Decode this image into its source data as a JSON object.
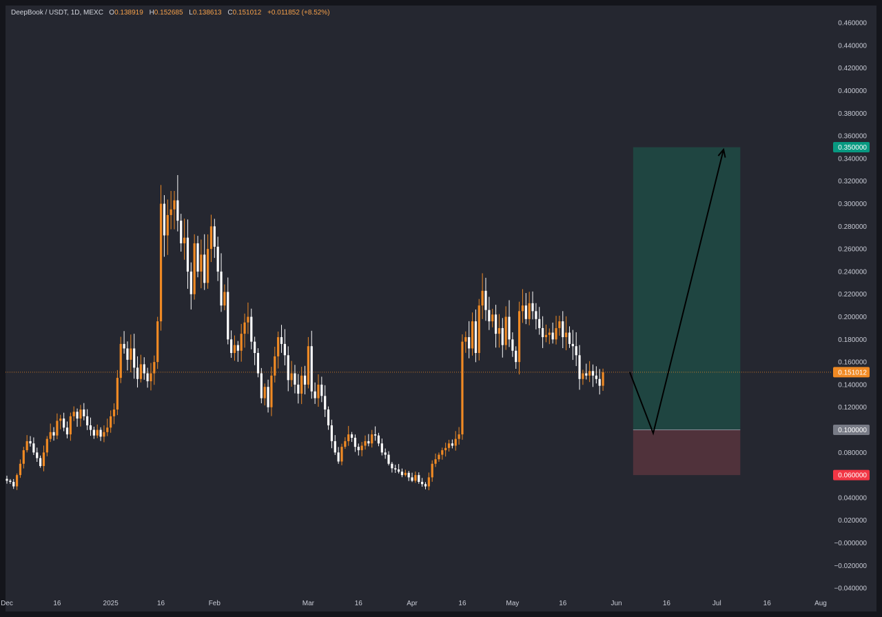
{
  "legend": {
    "symbol": "DeepBook / USDT, 1D, MEXC",
    "open_label": "O",
    "open": "0.138919",
    "high_label": "H",
    "high": "0.152685",
    "low_label": "L",
    "low": "0.138613",
    "close_label": "C",
    "close": "0.151012",
    "change": "+0.011852 (+8.52%)"
  },
  "colors": {
    "background": "#252730",
    "up_candle": "#f08a24",
    "down_candle": "#ffffff",
    "price_line": "#f08a24",
    "profit_zone": "#1f4541",
    "loss_zone": "#50323b",
    "target_badge": "#089981",
    "entry_badge": "#787b86",
    "stop_badge": "#f23645",
    "current_badge": "#f08a24",
    "arrow": "#000000"
  },
  "chart_data": {
    "type": "candlestick",
    "title": "DeepBook / USDT, 1D, MEXC",
    "ylim": [
      -0.045,
      0.47
    ],
    "y_ticks": [
      "0.460000",
      "0.440000",
      "0.420000",
      "0.400000",
      "0.380000",
      "0.360000",
      "0.340000",
      "0.320000",
      "0.300000",
      "0.280000",
      "0.260000",
      "0.240000",
      "0.220000",
      "0.200000",
      "0.180000",
      "0.160000",
      "0.140000",
      "0.120000",
      "0.100000",
      "0.080000",
      "0.060000",
      "0.040000",
      "0.020000",
      "−0.000000",
      "−0.020000",
      "−0.040000"
    ],
    "y_tick_values": [
      0.46,
      0.44,
      0.42,
      0.4,
      0.38,
      0.36,
      0.34,
      0.32,
      0.3,
      0.28,
      0.26,
      0.24,
      0.22,
      0.2,
      0.18,
      0.16,
      0.14,
      0.12,
      0.1,
      0.08,
      0.06,
      0.04,
      0.02,
      0,
      -0.02,
      -0.04
    ],
    "x_ticks": [
      {
        "label": "Dec",
        "day": 0
      },
      {
        "label": "16",
        "day": 15
      },
      {
        "label": "2025",
        "day": 31
      },
      {
        "label": "16",
        "day": 46
      },
      {
        "label": "Feb",
        "day": 62
      },
      {
        "label": "Mar",
        "day": 90
      },
      {
        "label": "16",
        "day": 105
      },
      {
        "label": "Apr",
        "day": 121
      },
      {
        "label": "16",
        "day": 136
      },
      {
        "label": "May",
        "day": 151
      },
      {
        "label": "16",
        "day": 166
      },
      {
        "label": "Jun",
        "day": 182
      },
      {
        "label": "16",
        "day": 197
      },
      {
        "label": "Jul",
        "day": 212
      },
      {
        "label": "16",
        "day": 227
      },
      {
        "label": "Aug",
        "day": 243
      }
    ],
    "current_price": 0.151012,
    "current_price_label": "0.151012",
    "position": {
      "start_day": 187,
      "end_day": 219,
      "target": 0.35,
      "target_label": "0.350000",
      "entry": 0.1,
      "entry_label": "0.100000",
      "stop": 0.06,
      "stop_label": "0.060000"
    },
    "projection": [
      {
        "day": 186,
        "price": 0.151
      },
      {
        "day": 193,
        "price": 0.097
      },
      {
        "day": 214,
        "price": 0.348
      }
    ],
    "closes": [
      0.055,
      0.054,
      0.05,
      0.06,
      0.07,
      0.082,
      0.09,
      0.088,
      0.08,
      0.075,
      0.068,
      0.08,
      0.092,
      0.098,
      0.095,
      0.108,
      0.11,
      0.102,
      0.096,
      0.112,
      0.116,
      0.11,
      0.118,
      0.112,
      0.104,
      0.1,
      0.095,
      0.1,
      0.094,
      0.098,
      0.102,
      0.112,
      0.118,
      0.146,
      0.176,
      0.172,
      0.162,
      0.172,
      0.155,
      0.145,
      0.158,
      0.15,
      0.143,
      0.15,
      0.16,
      0.196,
      0.3,
      0.272,
      0.29,
      0.295,
      0.303,
      0.285,
      0.265,
      0.27,
      0.24,
      0.22,
      0.265,
      0.24,
      0.255,
      0.23,
      0.26,
      0.28,
      0.262,
      0.24,
      0.21,
      0.222,
      0.18,
      0.168,
      0.175,
      0.17,
      0.185,
      0.195,
      0.2,
      0.178,
      0.168,
      0.15,
      0.128,
      0.138,
      0.12,
      0.148,
      0.165,
      0.182,
      0.176,
      0.166,
      0.144,
      0.15,
      0.14,
      0.132,
      0.148,
      0.14,
      0.174,
      0.134,
      0.128,
      0.14,
      0.13,
      0.118,
      0.104,
      0.09,
      0.08,
      0.072,
      0.085,
      0.09,
      0.096,
      0.093,
      0.085,
      0.082,
      0.086,
      0.09,
      0.088,
      0.096,
      0.095,
      0.088,
      0.08,
      0.078,
      0.07,
      0.066,
      0.065,
      0.063,
      0.06,
      0.062,
      0.058,
      0.055,
      0.06,
      0.054,
      0.052,
      0.05,
      0.058,
      0.07,
      0.074,
      0.078,
      0.082,
      0.084,
      0.088,
      0.086,
      0.092,
      0.096,
      0.178,
      0.182,
      0.172,
      0.196,
      0.168,
      0.21,
      0.223,
      0.206,
      0.196,
      0.202,
      0.185,
      0.19,
      0.175,
      0.2,
      0.18,
      0.17,
      0.16,
      0.205,
      0.21,
      0.198,
      0.212,
      0.205,
      0.198,
      0.19,
      0.182,
      0.184,
      0.186,
      0.18,
      0.19,
      0.196,
      0.182,
      0.186,
      0.176,
      0.174,
      0.166,
      0.145,
      0.15,
      0.148,
      0.152,
      0.148,
      0.145,
      0.139,
      0.151
    ]
  }
}
